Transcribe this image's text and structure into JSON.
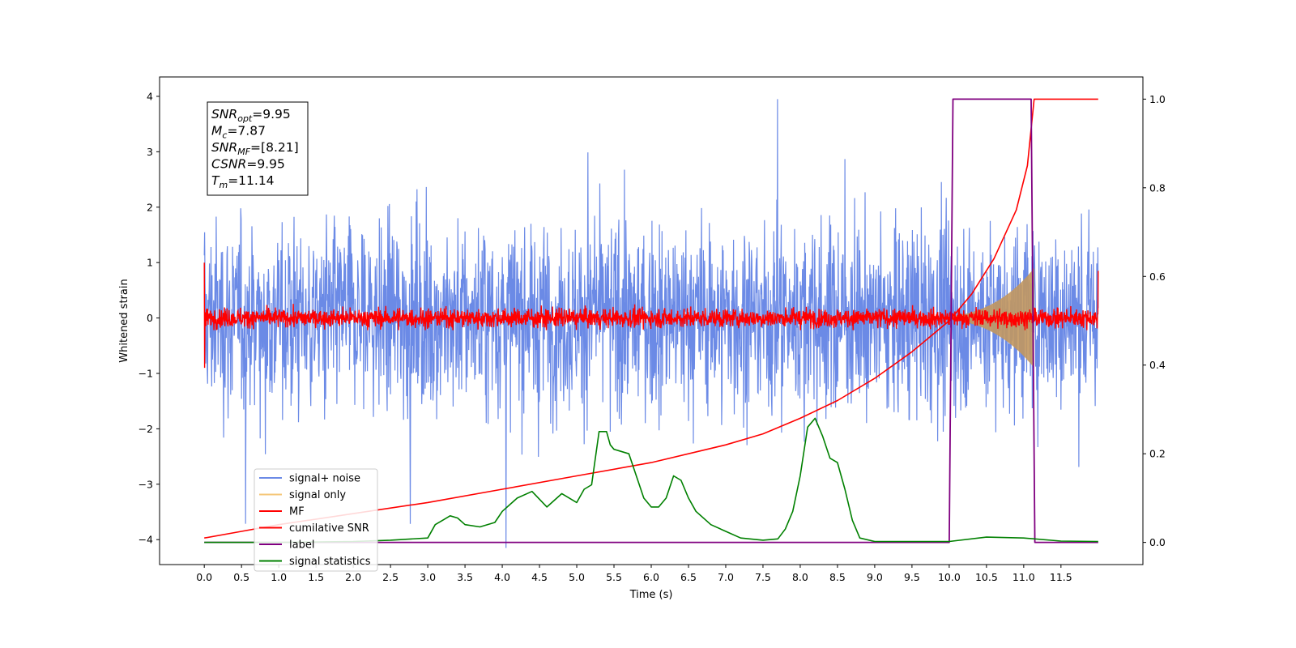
{
  "chart_data": {
    "type": "line",
    "title": "",
    "xlabel": "Time (s)",
    "ylabel": "Whitened strain",
    "xlim": [
      -0.6,
      12.6
    ],
    "ylim": [
      -4.45,
      4.35
    ],
    "y2lim": [
      -0.05,
      1.05
    ],
    "xticks": [
      0.0,
      0.5,
      1.0,
      1.5,
      2.0,
      2.5,
      3.0,
      3.5,
      4.0,
      4.5,
      5.0,
      5.5,
      6.0,
      6.5,
      7.0,
      7.5,
      8.0,
      8.5,
      9.0,
      9.5,
      10.0,
      10.5,
      11.0,
      11.5
    ],
    "xtick_labels": [
      "0.0",
      "0.5",
      "1.0",
      "1.5",
      "2.0",
      "2.5",
      "3.0",
      "3.5",
      "4.0",
      "4.5",
      "5.0",
      "5.5",
      "6.0",
      "6.5",
      "7.0",
      "7.5",
      "8.0",
      "8.5",
      "9.0",
      "9.5",
      "10.0",
      "10.5",
      "11.0",
      "11.5"
    ],
    "yticks": [
      -4,
      -3,
      -2,
      -1,
      0,
      1,
      2,
      3,
      4
    ],
    "ytick_labels": [
      "−4",
      "−3",
      "−2",
      "−1",
      "0",
      "1",
      "2",
      "3",
      "4"
    ],
    "y2ticks": [
      0.0,
      0.2,
      0.4,
      0.6,
      0.8,
      1.0
    ],
    "y2tick_labels": [
      "0.0",
      "0.2",
      "0.4",
      "0.6",
      "0.8",
      "1.0"
    ],
    "grid": false,
    "legend_position": "lower-left",
    "colors": {
      "signal_noise": "#6b8ae6",
      "signal_only": "#f5c77a",
      "mf": "#ff0000",
      "csnr": "#ff0000",
      "label": "#800080",
      "stats": "#008000"
    },
    "annotation": {
      "lines": [
        {
          "sym": "SNR",
          "sub": "opt",
          "value": "=9.95"
        },
        {
          "sym": "M",
          "sub": "c",
          "value": "=7.87"
        },
        {
          "sym": "SNR",
          "sub": "MF",
          "value": "=[8.21]"
        },
        {
          "sym": "CSNR",
          "sub": "",
          "value": "=9.95"
        },
        {
          "sym": "T",
          "sub": "m",
          "value": "=11.14"
        }
      ]
    },
    "series": [
      {
        "name": "signal+ noise",
        "axis": "left",
        "noise_amplitude": 1.2,
        "x_range": [
          0.0,
          12.0
        ]
      },
      {
        "name": "signal only",
        "axis": "left",
        "chirp_start": 9.5,
        "chirp_end": 11.14,
        "max_amplitude": 0.9
      },
      {
        "name": "MF",
        "axis": "left",
        "noise_amplitude": 0.12,
        "x_range": [
          0.0,
          12.0
        ]
      },
      {
        "name": "cumilative SNR",
        "axis": "right",
        "x": [
          0.0,
          0.5,
          1.0,
          2.0,
          3.0,
          4.0,
          5.0,
          6.0,
          7.0,
          7.5,
          8.0,
          8.5,
          9.0,
          9.5,
          10.0,
          10.3,
          10.6,
          10.9,
          11.05,
          11.14,
          12.0
        ],
        "y": [
          0.01,
          0.025,
          0.04,
          0.065,
          0.09,
          0.12,
          0.15,
          0.18,
          0.22,
          0.245,
          0.28,
          0.32,
          0.37,
          0.43,
          0.5,
          0.56,
          0.64,
          0.75,
          0.85,
          1.0,
          1.0
        ]
      },
      {
        "name": "label",
        "axis": "right",
        "x": [
          0.0,
          10.0,
          10.05,
          11.1,
          11.15,
          12.0
        ],
        "y": [
          0.0,
          0.0,
          1.0,
          1.0,
          0.0,
          0.0
        ]
      },
      {
        "name": "signal statistics",
        "axis": "right",
        "x": [
          0.0,
          1.0,
          2.0,
          2.5,
          3.0,
          3.1,
          3.2,
          3.3,
          3.4,
          3.5,
          3.7,
          3.9,
          4.0,
          4.2,
          4.4,
          4.6,
          4.8,
          5.0,
          5.1,
          5.2,
          5.3,
          5.4,
          5.45,
          5.5,
          5.7,
          5.9,
          6.0,
          6.1,
          6.2,
          6.3,
          6.4,
          6.5,
          6.6,
          6.8,
          7.0,
          7.2,
          7.5,
          7.7,
          7.8,
          7.9,
          8.0,
          8.1,
          8.2,
          8.3,
          8.4,
          8.5,
          8.6,
          8.7,
          8.8,
          9.0,
          10.0,
          10.5,
          11.0,
          11.5,
          12.0
        ],
        "y": [
          0.0,
          0.0,
          0.002,
          0.005,
          0.01,
          0.04,
          0.05,
          0.06,
          0.055,
          0.04,
          0.035,
          0.045,
          0.07,
          0.1,
          0.115,
          0.08,
          0.11,
          0.09,
          0.12,
          0.13,
          0.25,
          0.25,
          0.22,
          0.21,
          0.2,
          0.1,
          0.08,
          0.08,
          0.1,
          0.15,
          0.14,
          0.1,
          0.07,
          0.04,
          0.025,
          0.01,
          0.005,
          0.008,
          0.03,
          0.07,
          0.15,
          0.26,
          0.28,
          0.24,
          0.19,
          0.18,
          0.12,
          0.05,
          0.01,
          0.002,
          0.002,
          0.012,
          0.01,
          0.003,
          0.002
        ]
      }
    ]
  }
}
